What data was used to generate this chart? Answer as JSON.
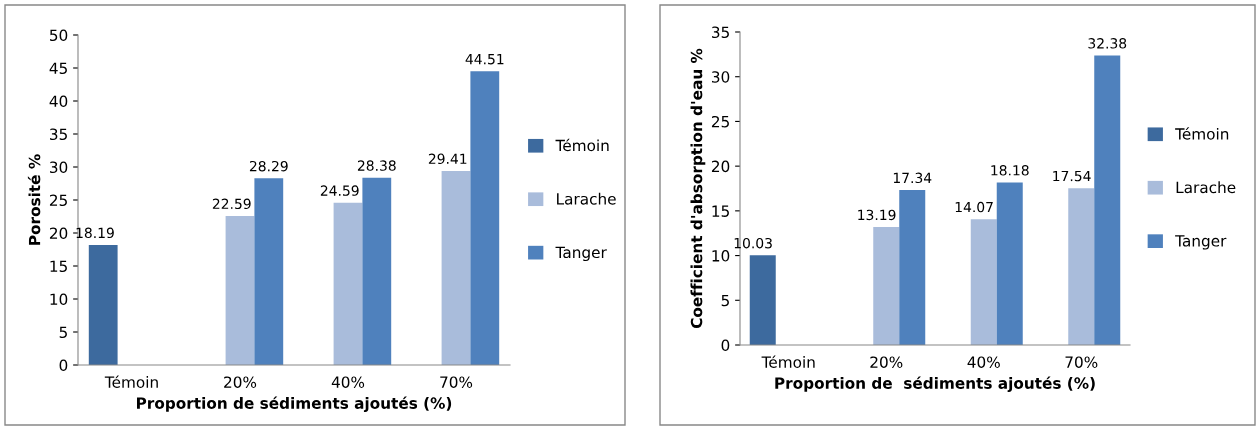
{
  "chart_data": [
    {
      "type": "bar",
      "ylabel": "Porosité %",
      "xlabel": "Proportion de sédiments ajoutés (%)",
      "categories": [
        "Témoin",
        "20%",
        "40%",
        "70%"
      ],
      "series": [
        {
          "name": "Témoin",
          "color": "#3d6a9e",
          "values": [
            18.19,
            null,
            null,
            null
          ]
        },
        {
          "name": "Larache",
          "color": "#a9bcdb",
          "values": [
            null,
            22.59,
            24.59,
            29.41
          ]
        },
        {
          "name": "Tanger",
          "color": "#4f81bd",
          "values": [
            null,
            28.29,
            28.38,
            44.51
          ]
        }
      ],
      "ylim": [
        0,
        50
      ],
      "yticks": [
        0,
        5,
        10,
        15,
        20,
        25,
        30,
        35,
        40,
        45,
        50
      ],
      "data_labels": true,
      "legend": "right"
    },
    {
      "type": "bar",
      "ylabel": "Coefficient d'absorption d'eau %",
      "xlabel": "Proportion de  sédiments ajoutés (%)",
      "categories": [
        "Témoin",
        "20%",
        "40%",
        "70%"
      ],
      "series": [
        {
          "name": "Témoin",
          "color": "#3d6a9e",
          "values": [
            10.03,
            null,
            null,
            null
          ]
        },
        {
          "name": "Larache",
          "color": "#a9bcdb",
          "values": [
            null,
            13.19,
            14.07,
            17.54
          ]
        },
        {
          "name": "Tanger",
          "color": "#4f81bd",
          "values": [
            null,
            17.34,
            18.18,
            32.38
          ]
        }
      ],
      "ylim": [
        0,
        35
      ],
      "yticks": [
        0,
        5,
        10,
        15,
        20,
        25,
        30,
        35
      ],
      "data_labels": true,
      "legend": "right"
    }
  ]
}
